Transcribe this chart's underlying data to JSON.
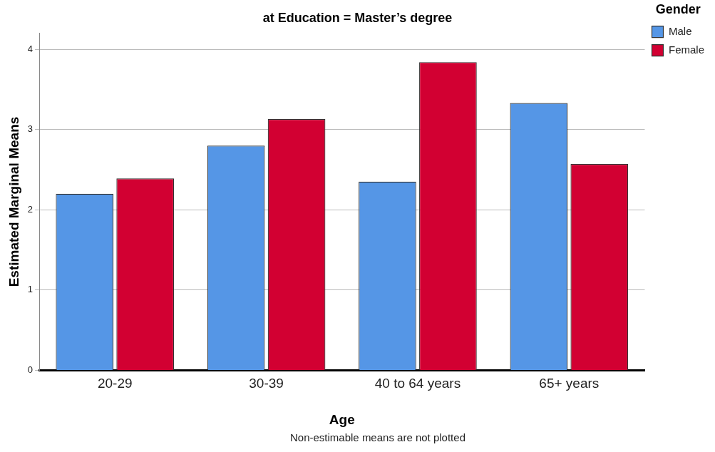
{
  "chart_data": {
    "type": "bar",
    "title": "at Education = Master’s degree",
    "xlabel": "Age",
    "ylabel": "Estimated Marginal Means",
    "legend_title": "Gender",
    "categories": [
      "20-29",
      "30-39",
      "40 to 64 years",
      "65+ years"
    ],
    "series": [
      {
        "name": "Male",
        "color": "#5596e6",
        "values": [
          2.2,
          2.8,
          2.35,
          3.33
        ]
      },
      {
        "name": "Female",
        "color": "#d20032",
        "values": [
          2.39,
          3.13,
          3.84,
          2.57
        ]
      }
    ],
    "ylim": [
      0,
      4.2
    ],
    "yticks": [
      0,
      1,
      2,
      3,
      4
    ],
    "grid": "y",
    "legend": "top right",
    "annotations": [
      "Non-estimable means are not plotted"
    ]
  }
}
